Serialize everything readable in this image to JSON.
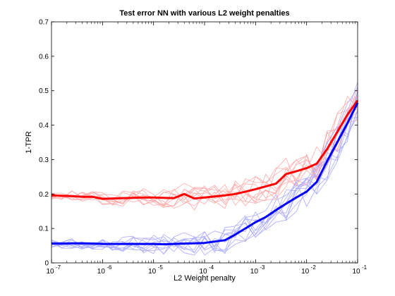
{
  "chart_data": {
    "type": "line",
    "title": "Test error NN with various L2 weight penalties",
    "xlabel": "L2 Weight penalty",
    "ylabel": "1-TPR",
    "xscale": "log",
    "xlim": [
      1e-07,
      0.1
    ],
    "ylim": [
      0,
      0.7
    ],
    "grid": false,
    "x_tick_labels": [
      {
        "base": "10",
        "exp": "-7"
      },
      {
        "base": "10",
        "exp": "-6"
      },
      {
        "base": "10",
        "exp": "-5"
      },
      {
        "base": "10",
        "exp": "-4"
      },
      {
        "base": "10",
        "exp": "-3"
      },
      {
        "base": "10",
        "exp": "-2"
      },
      {
        "base": "10",
        "exp": "-1"
      }
    ],
    "y_ticks": [
      0,
      0.1,
      0.2,
      0.3,
      0.4,
      0.5,
      0.6,
      0.7
    ],
    "y_tick_labels": [
      "0",
      "0.1",
      "0.2",
      "0.3",
      "0.4",
      "0.5",
      "0.6",
      "0.7"
    ],
    "x": [
      1e-07,
      1.58e-07,
      2.51e-07,
      3.98e-07,
      6.31e-07,
      1e-06,
      1.58e-06,
      2.51e-06,
      3.98e-06,
      6.31e-06,
      1e-05,
      1.58e-05,
      2.51e-05,
      3.98e-05,
      6.31e-05,
      0.0001,
      0.000158,
      0.000251,
      0.000398,
      0.000631,
      0.001,
      0.00158,
      0.00251,
      0.00398,
      0.00631,
      0.01,
      0.0158,
      0.0251,
      0.0398,
      0.0631,
      0.1
    ],
    "series": [
      {
        "color": "#ff0000",
        "values": [
          0.196,
          0.195,
          0.194,
          0.192,
          0.192,
          0.186,
          0.187,
          0.188,
          0.189,
          0.19,
          0.19,
          0.189,
          0.188,
          0.2,
          0.187,
          0.19,
          0.193,
          0.196,
          0.2,
          0.207,
          0.214,
          0.222,
          0.23,
          0.258,
          0.266,
          0.275,
          0.288,
          0.33,
          0.38,
          0.43,
          0.472
        ]
      },
      {
        "color": "#0000ff",
        "values": [
          0.056,
          0.056,
          0.057,
          0.057,
          0.056,
          0.055,
          0.055,
          0.055,
          0.055,
          0.055,
          0.055,
          0.054,
          0.055,
          0.056,
          0.057,
          0.058,
          0.062,
          0.066,
          0.082,
          0.1,
          0.118,
          0.133,
          0.153,
          0.172,
          0.19,
          0.207,
          0.235,
          0.295,
          0.35,
          0.405,
          0.465
        ]
      }
    ],
    "individual_runs": {
      "red_color": "#ffaaaa",
      "blue_color": "#aaaaff",
      "count": 10
    }
  }
}
